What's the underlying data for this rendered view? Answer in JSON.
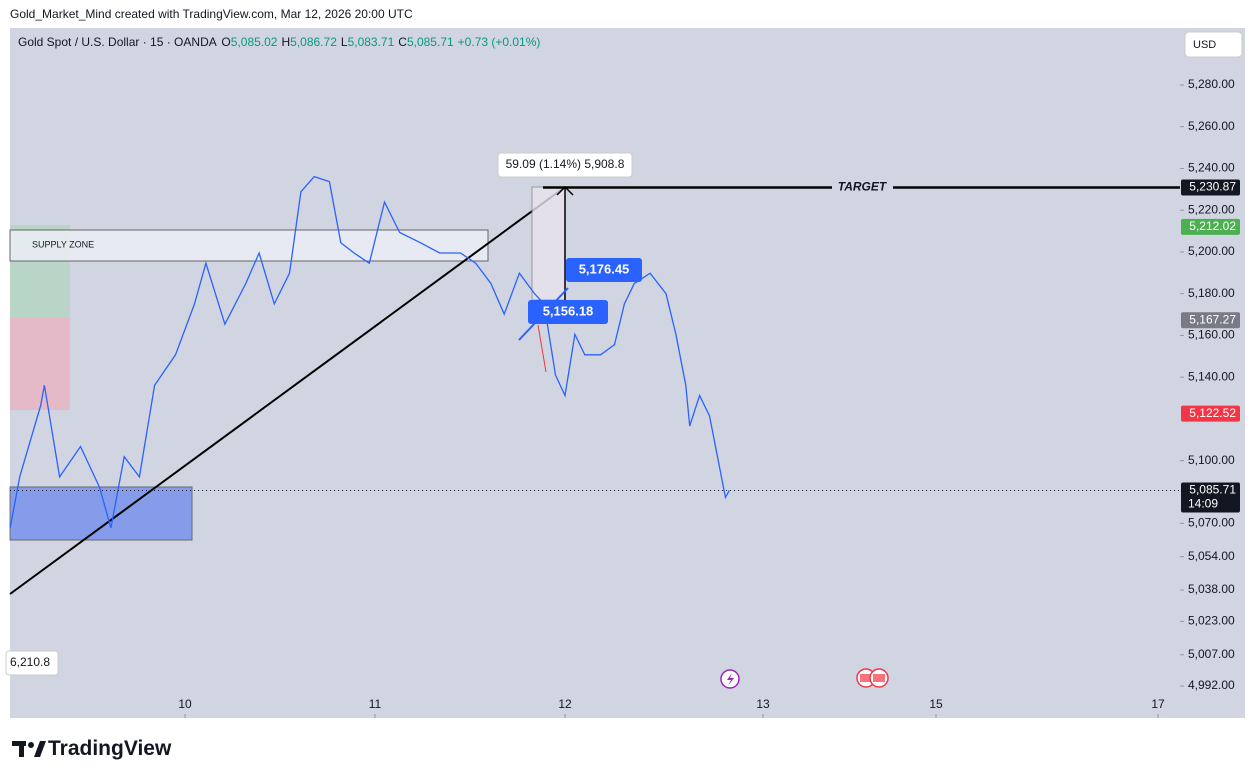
{
  "header": "Gold_Market_Mind created with TradingView.com, Mar 12, 2026 20:00 UTC",
  "legend": {
    "symbol": "Gold Spot / U.S. Dollar · 15 · OANDA",
    "items": [
      {
        "key": "O",
        "value": "5,085.02"
      },
      {
        "key": "H",
        "value": "5,086.72"
      },
      {
        "key": "L",
        "value": "5,083.71"
      },
      {
        "key": "C",
        "value": "5,085.71"
      }
    ],
    "change": "+0.73 (+0.01%)"
  },
  "currency": "USD",
  "brand": "TradingView",
  "chart_data": {
    "type": "line",
    "x": [
      9.08,
      9.13,
      9.24,
      9.26,
      9.34,
      9.45,
      9.55,
      9.61,
      9.68,
      9.76,
      9.84,
      9.95,
      10.05,
      10.11,
      10.21,
      10.32,
      10.39,
      10.47,
      10.55,
      10.61,
      10.68,
      10.76,
      10.82,
      10.89,
      10.97,
      11.05,
      11.13,
      11.24,
      11.34,
      11.45,
      11.53,
      11.61,
      11.68,
      11.76,
      11.84,
      11.89,
      11.95,
      12,
      12.05,
      12.1,
      12.18,
      12.25,
      12.3,
      12.35,
      12.43,
      12.51,
      12.56,
      12.61,
      12.63,
      12.68,
      12.73,
      12.76,
      12.81,
      12.83
    ],
    "values": [
      5067.8,
      5092.2,
      5126.3,
      5136.1,
      5092.2,
      5106.8,
      5087.3,
      5067.8,
      5101.9,
      5092.2,
      5136.1,
      5150.7,
      5175.1,
      5194.6,
      5165.4,
      5184.9,
      5199.5,
      5175.1,
      5189.8,
      5228.8,
      5236.1,
      5233.7,
      5204.4,
      5199.5,
      5194.6,
      5223.9,
      5209.3,
      5204.4,
      5199.5,
      5199.5,
      5194.6,
      5184.9,
      5170.2,
      5189.8,
      5180.0,
      5175.1,
      5141.0,
      5131.2,
      5160.5,
      5150.7,
      5150.7,
      5155.6,
      5175.1,
      5184.9,
      5189.8,
      5180.0,
      5160.5,
      5136.1,
      5116.6,
      5131.2,
      5121.5,
      5106.8,
      5082.4,
      5085.71
    ],
    "color": "#2962ff",
    "xlim": [
      9.08,
      17.78
    ],
    "xticks": [
      10,
      11,
      12,
      13,
      15,
      17
    ],
    "ylim": [
      4976.7,
      5307.3
    ],
    "yticks": [
      {
        "value": 5280,
        "label": "5,280.00"
      },
      {
        "value": 5260,
        "label": "5,260.00"
      },
      {
        "value": 5240,
        "label": "5,240.00"
      },
      {
        "value": 5220,
        "label": "5,220.00"
      },
      {
        "value": 5200,
        "label": "5,200.00"
      },
      {
        "value": 5180,
        "label": "5,180.00"
      },
      {
        "value": 5160,
        "label": "5,160.00"
      },
      {
        "value": 5140,
        "label": "5,140.00"
      },
      {
        "value": 5100,
        "label": "5,100.00"
      },
      {
        "value": 5070,
        "label": "5,070.00"
      },
      {
        "value": 5054,
        "label": "5,054.00"
      },
      {
        "value": 5038,
        "label": "5,038.00"
      },
      {
        "value": 5023,
        "label": "5,023.00"
      },
      {
        "value": 5007,
        "label": "5,007.00"
      },
      {
        "value": 4992,
        "label": "4,992.00"
      }
    ],
    "price_labels": [
      {
        "value": 5230.87,
        "label": "5,230.87",
        "color": "#131722"
      },
      {
        "value": 5212.02,
        "label": "5,212.02",
        "color": "#4caf50"
      },
      {
        "value": 5167.27,
        "label": "5,167.27",
        "color": "#787b86"
      },
      {
        "value": 5122.52,
        "label": "5,122.52",
        "color": "#f23645"
      },
      {
        "value": 5085.71,
        "label": "5,085.71",
        "color": "#131722"
      }
    ],
    "countdown": "14:09",
    "annotations": {
      "target": "TARGET",
      "supply_zone": "SUPPLY ZONE",
      "measure": "59.09 (1.14%) 5,908.8",
      "label_high": "5,176.45",
      "label_low": "5,156.18",
      "left_price": "6,210.8"
    }
  }
}
